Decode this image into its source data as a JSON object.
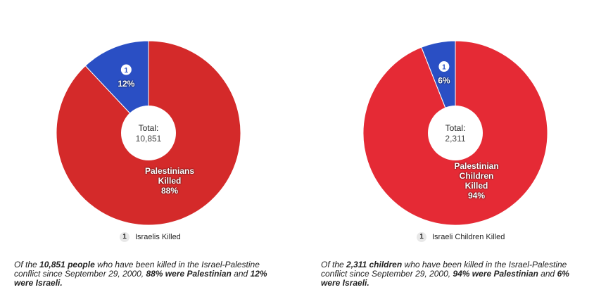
{
  "chart_data": [
    {
      "type": "pie",
      "categories": [
        "Palestinians Killed",
        "Israelis Killed"
      ],
      "values": [
        88,
        12
      ],
      "value_suffix": "%",
      "colors": [
        "#d42a2a",
        "#2a4fc4"
      ],
      "center_title": "Total:",
      "center_value": "10,851",
      "legend": {
        "badge": "1",
        "label": "Israelis Killed"
      },
      "caption": {
        "p1": "Of the ",
        "b1": "10,851 people",
        "p2": " who have been killed in the Israel-Palestine conflict since September 29, 2000, ",
        "b2": "88% were Palestinian",
        "p3": " and ",
        "b3": "12% were Israeli."
      }
    },
    {
      "type": "pie",
      "categories": [
        "Palestinian Children Killed",
        "Israeli Children Killed"
      ],
      "values": [
        94,
        6
      ],
      "value_suffix": "%",
      "colors": [
        "#e52a35",
        "#2a4fc4"
      ],
      "center_title": "Total:",
      "center_value": "2,311",
      "legend": {
        "badge": "1",
        "label": "Israeli Children Killed"
      },
      "caption": {
        "p1": "Of the ",
        "b1": "2,311 children",
        "p2": " who have been killed in the Israel-Palestine conflict since September 29, 2000, ",
        "b2": "94% were Palestinian",
        "p3": " and ",
        "b3": "6% were Israeli."
      }
    }
  ],
  "icons": {
    "slice_badge": "info-badge-icon"
  }
}
